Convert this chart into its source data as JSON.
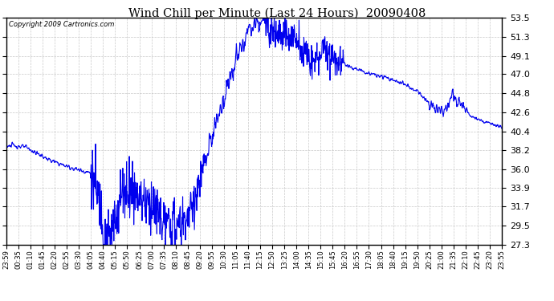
{
  "title": "Wind Chill per Minute (Last 24 Hours)  20090408",
  "copyright": "Copyright 2009 Cartronics.com",
  "line_color": "#0000EE",
  "bg_color": "#ffffff",
  "plot_bg_color": "#ffffff",
  "grid_color": "#bbbbbb",
  "yticks": [
    27.3,
    29.5,
    31.7,
    33.9,
    36.0,
    38.2,
    40.4,
    42.6,
    44.8,
    47.0,
    49.1,
    51.3,
    53.5
  ],
  "ylim": [
    27.3,
    53.5
  ],
  "xtick_labels": [
    "23:59",
    "00:35",
    "01:10",
    "01:45",
    "02:20",
    "02:55",
    "03:30",
    "04:05",
    "04:40",
    "05:15",
    "05:50",
    "06:25",
    "07:00",
    "07:35",
    "08:10",
    "08:45",
    "09:20",
    "09:55",
    "10:30",
    "11:05",
    "11:40",
    "12:15",
    "12:50",
    "13:25",
    "14:00",
    "14:35",
    "15:10",
    "15:45",
    "16:20",
    "16:55",
    "17:30",
    "18:05",
    "18:40",
    "19:15",
    "19:50",
    "20:25",
    "21:00",
    "21:35",
    "22:10",
    "22:45",
    "23:20",
    "23:55"
  ]
}
